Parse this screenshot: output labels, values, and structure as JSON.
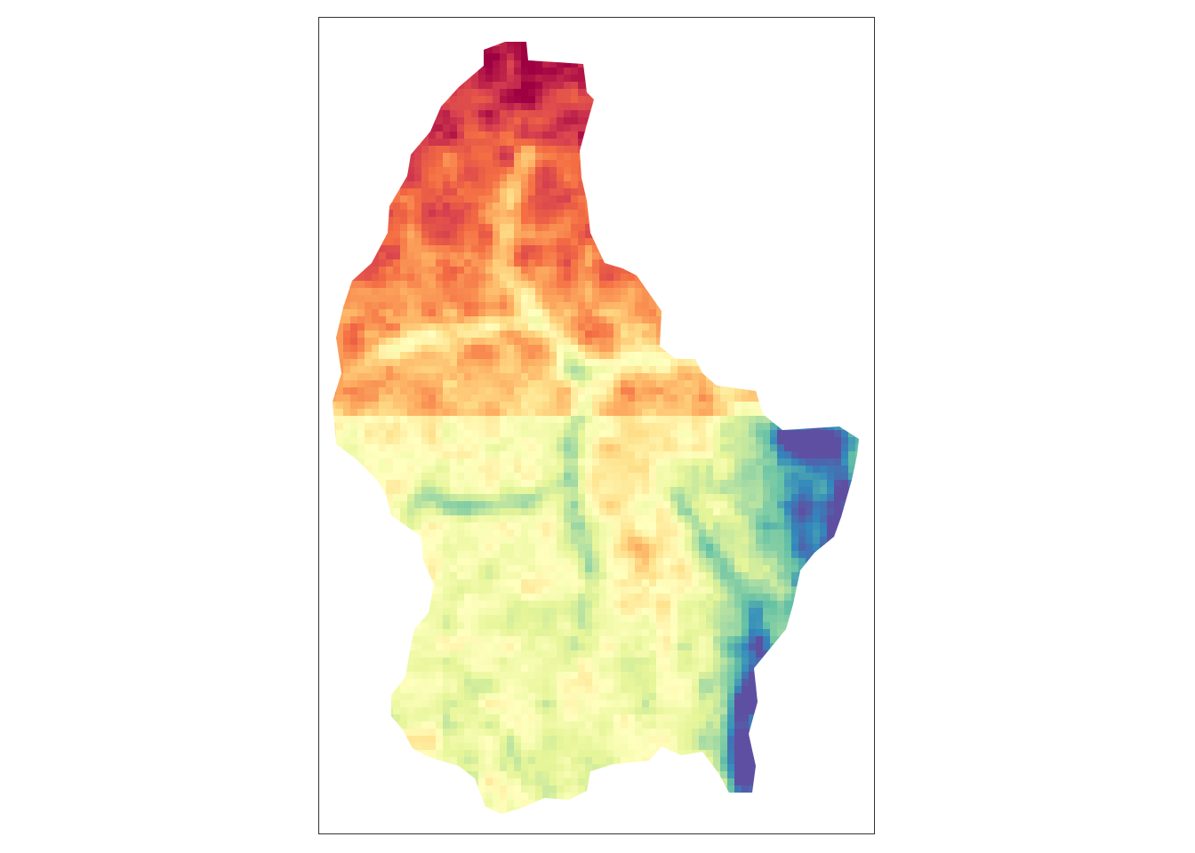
{
  "map": {
    "type": "raster-elevation",
    "colormap": "spectral",
    "legend_shown": false,
    "axes_shown": false,
    "frame_color": "#333333",
    "palette": [
      "#9e0142",
      "#d53e4f",
      "#f46d43",
      "#fdae61",
      "#fee08b",
      "#ffffbf",
      "#e6f598",
      "#abdda4",
      "#66c2a5",
      "#3288bd",
      "#5e4fa2"
    ]
  }
}
